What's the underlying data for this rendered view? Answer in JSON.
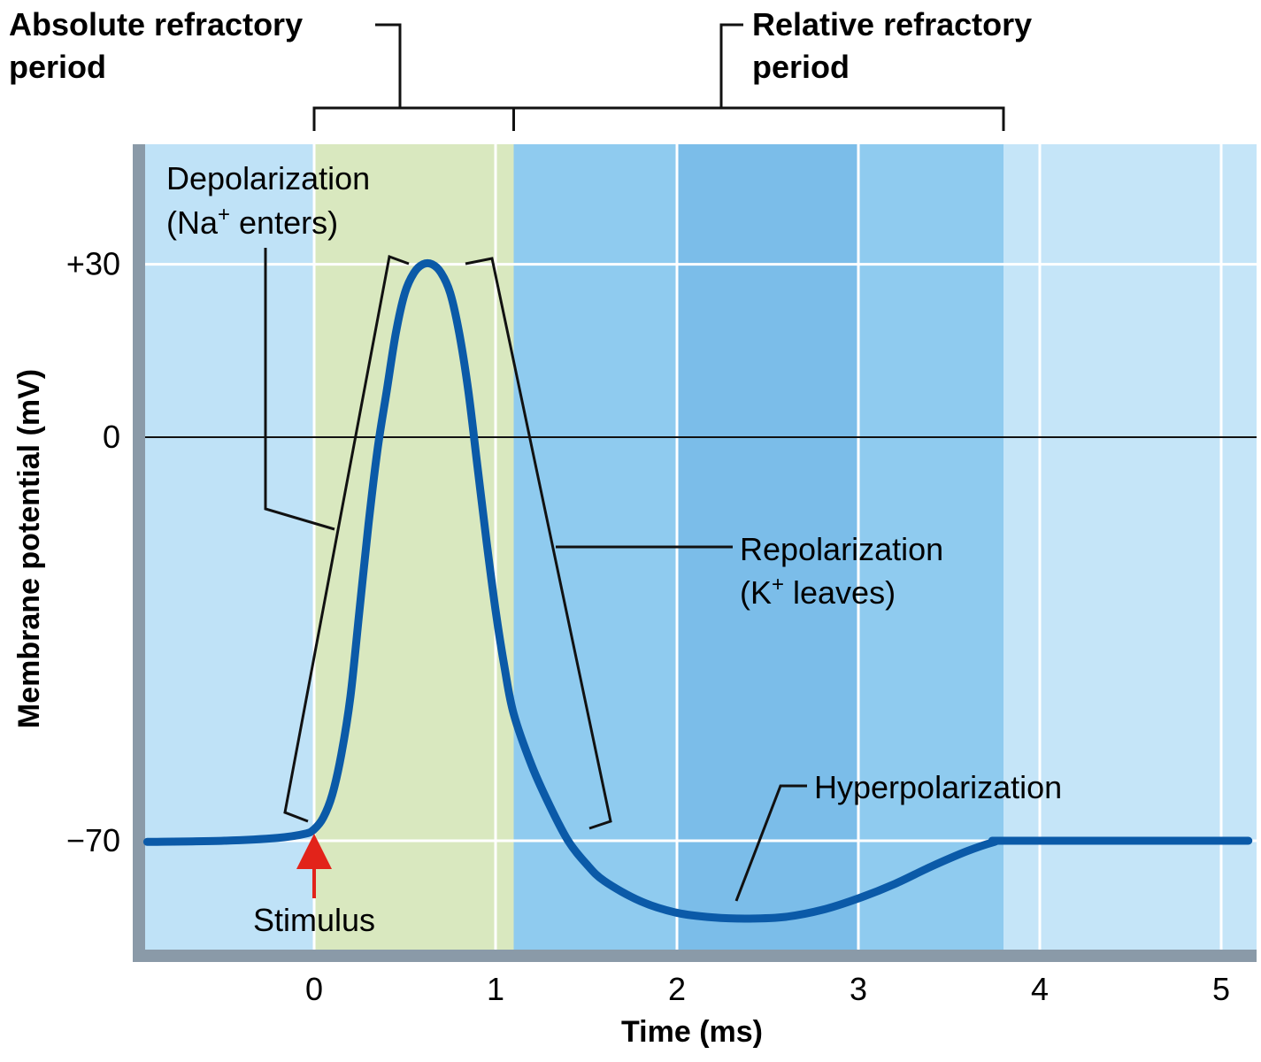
{
  "chart_data": {
    "type": "line",
    "title": "",
    "xlabel": "Time (ms)",
    "ylabel": "Membrane potential (mV)",
    "xlim": [
      -0.95,
      5.2
    ],
    "ylim": [
      -95,
      55
    ],
    "x_ticks": [
      {
        "value": 0,
        "label": "0"
      },
      {
        "value": 1,
        "label": "1"
      },
      {
        "value": 2,
        "label": "2"
      },
      {
        "value": 3,
        "label": "3"
      },
      {
        "value": 4,
        "label": "4"
      },
      {
        "value": 5,
        "label": "5"
      }
    ],
    "y_ticks": [
      {
        "value": 30,
        "label": "+30"
      },
      {
        "value": 0,
        "label": "0"
      },
      {
        "value": -70,
        "label": "−70"
      }
    ],
    "series": [
      {
        "color": "#0b5aa8",
        "points": [
          [
            -0.92,
            -70.2
          ],
          [
            -0.5,
            -70.0
          ],
          [
            -0.2,
            -69.5
          ],
          [
            -0.05,
            -68.8
          ],
          [
            0.0,
            -68.0
          ],
          [
            0.05,
            -66
          ],
          [
            0.1,
            -62
          ],
          [
            0.15,
            -55
          ],
          [
            0.2,
            -45
          ],
          [
            0.25,
            -30
          ],
          [
            0.3,
            -15
          ],
          [
            0.35,
            -2
          ],
          [
            0.4,
            8
          ],
          [
            0.45,
            18
          ],
          [
            0.5,
            25
          ],
          [
            0.55,
            28.5
          ],
          [
            0.6,
            30
          ],
          [
            0.65,
            30
          ],
          [
            0.7,
            28.5
          ],
          [
            0.75,
            25
          ],
          [
            0.8,
            18
          ],
          [
            0.85,
            8
          ],
          [
            0.9,
            -5
          ],
          [
            0.95,
            -18
          ],
          [
            1.0,
            -30
          ],
          [
            1.05,
            -40
          ],
          [
            1.1,
            -48
          ],
          [
            1.2,
            -57
          ],
          [
            1.3,
            -64
          ],
          [
            1.4,
            -70
          ],
          [
            1.5,
            -74
          ],
          [
            1.6,
            -77
          ],
          [
            1.8,
            -80.5
          ],
          [
            2.0,
            -82.5
          ],
          [
            2.2,
            -83.3
          ],
          [
            2.4,
            -83.5
          ],
          [
            2.6,
            -83.2
          ],
          [
            2.8,
            -82
          ],
          [
            3.0,
            -80
          ],
          [
            3.2,
            -77.5
          ],
          [
            3.4,
            -74.5
          ],
          [
            3.6,
            -71.8
          ],
          [
            3.75,
            -70.2
          ],
          [
            3.8,
            -70.0
          ],
          [
            4.5,
            -70.0
          ],
          [
            5.15,
            -70.0
          ]
        ]
      }
    ],
    "bands": [
      {
        "x0": -0.95,
        "x1": 0.0,
        "color": "#bfe2f7"
      },
      {
        "x0": 0.0,
        "x1": 1.1,
        "color": "#d9e8bf"
      },
      {
        "x0": 1.1,
        "x1": 3.8,
        "color": "#8fcbef"
      },
      {
        "x0": 3.8,
        "x1": 5.2,
        "color": "#c5e5f8"
      }
    ],
    "darker_band": {
      "x0": 2.0,
      "x1": 3.0,
      "color": "#7bbde9"
    },
    "annotations": {
      "absolute": {
        "line1": "Absolute refractory",
        "line2": "period",
        "x0": 0.0,
        "x1": 1.1
      },
      "relative": {
        "line1": "Relative refractory",
        "line2": "period",
        "x0": 1.1,
        "x1": 3.8
      },
      "depolarization": {
        "line1": "Depolarization",
        "line2_prefix": "(Na",
        "line2_sup": "+",
        "line2_suffix": " enters)"
      },
      "repolarization": {
        "line1": "Repolarization",
        "line2_prefix": "(K",
        "line2_sup": "+",
        "line2_suffix": " leaves)"
      },
      "hyperpolarization": "Hyperpolarization",
      "stimulus": {
        "label": "Stimulus",
        "x": 0.0
      }
    },
    "grid": true,
    "zero_line": true
  }
}
